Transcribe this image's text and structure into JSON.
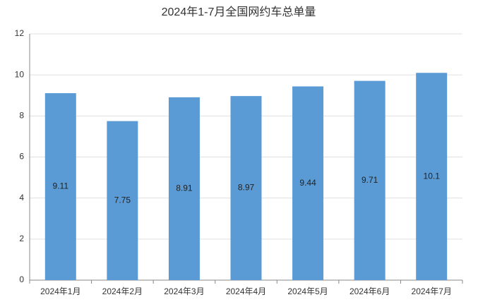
{
  "chart_data": {
    "type": "bar",
    "title": "2024年1-7月全国网约车总单量",
    "categories": [
      "2024年1月",
      "2024年2月",
      "2024年3月",
      "2024年4月",
      "2024年5月",
      "2024年6月",
      "2024年7月"
    ],
    "values": [
      9.11,
      7.75,
      8.91,
      8.97,
      9.44,
      9.71,
      10.1
    ],
    "color": "#5b9bd5",
    "ylim": [
      0,
      12
    ],
    "yticks": [
      0,
      2,
      4,
      6,
      8,
      10,
      12
    ],
    "grid": true
  }
}
